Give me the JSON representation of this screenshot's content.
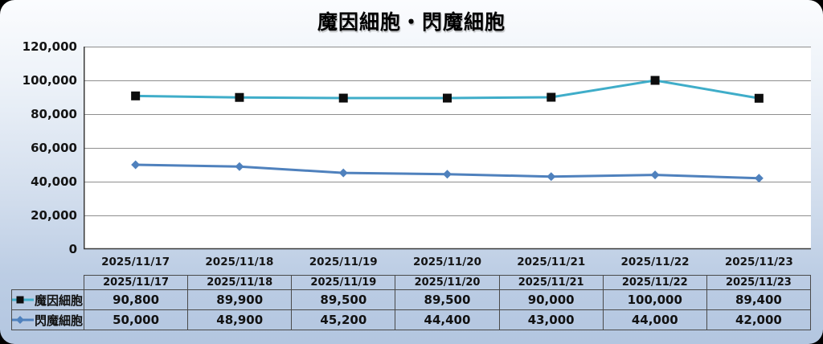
{
  "title": "魔因細胞・閃魔細胞",
  "colors": {
    "series1_line": "#3FADC9",
    "series1_marker": "#0d0d0d",
    "series2_line": "#4F81BD",
    "series2_marker": "#4F81BD",
    "gridline": "#8e8e8e",
    "axis": "#3a3a3a",
    "table_border": "#4a4a4a",
    "plot_bg": "#ffffff",
    "panel_top": "#fbfcfe",
    "panel_bottom": "#b3c6e0",
    "text": "#111111"
  },
  "chart_data": {
    "type": "line",
    "title": "魔因細胞・閃魔細胞",
    "categories": [
      "2025/11/17",
      "2025/11/18",
      "2025/11/19",
      "2025/11/20",
      "2025/11/21",
      "2025/11/22",
      "2025/11/23"
    ],
    "series": [
      {
        "name": "魔因細胞",
        "marker": "square",
        "line_color": "#3FADC9",
        "marker_color": "#0d0d0d",
        "values": [
          90800,
          89900,
          89500,
          89500,
          90000,
          100000,
          89400
        ]
      },
      {
        "name": "閃魔細胞",
        "marker": "diamond",
        "line_color": "#4F81BD",
        "marker_color": "#4F81BD",
        "values": [
          50000,
          48900,
          45200,
          44400,
          43000,
          44000,
          42000
        ]
      }
    ],
    "ylim": [
      0,
      120000
    ],
    "ytick_step": 20000,
    "ytick_labels_top_to_bottom": [
      "120,000",
      "100,000",
      "80,000",
      "60,000",
      "40,000",
      "20,000",
      "0"
    ],
    "grid": "horizontal",
    "legend_position": "table-left-column"
  },
  "table": {
    "headers": [
      "2025/11/17",
      "2025/11/18",
      "2025/11/19",
      "2025/11/20",
      "2025/11/21",
      "2025/11/22",
      "2025/11/23"
    ],
    "rows": [
      {
        "label": "魔因細胞",
        "values": [
          "90,800",
          "89,900",
          "89,500",
          "89,500",
          "90,000",
          "100,000",
          "89,400"
        ]
      },
      {
        "label": "閃魔細胞",
        "values": [
          "50,000",
          "48,900",
          "45,200",
          "44,400",
          "43,000",
          "44,000",
          "42,000"
        ]
      }
    ]
  }
}
